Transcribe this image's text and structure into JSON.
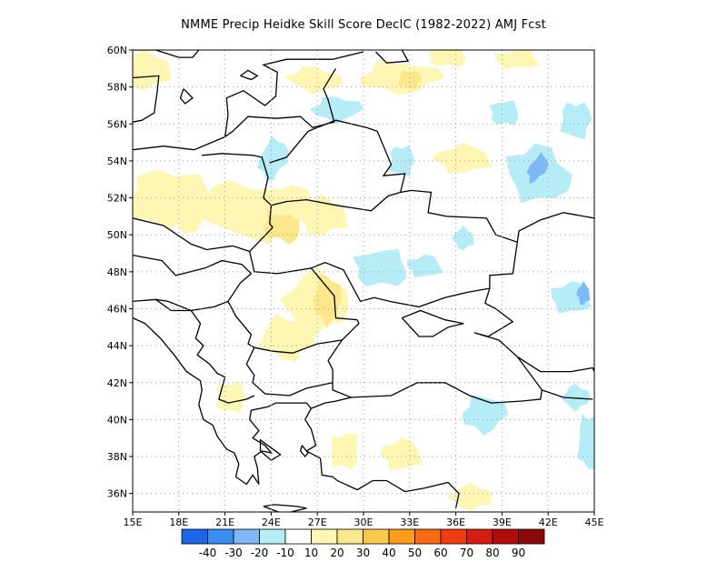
{
  "title": "NMME Precip Heidke Skill Score DecIC (1982-2022) AMJ Fcst",
  "map": {
    "lon_range": [
      15,
      45
    ],
    "lat_range": [
      35,
      60
    ],
    "lon_ticks": [
      "15E",
      "18E",
      "21E",
      "24E",
      "27E",
      "30E",
      "33E",
      "36E",
      "39E",
      "42E",
      "45E"
    ],
    "lat_ticks": [
      "60N",
      "58N",
      "56N",
      "54N",
      "52N",
      "50N",
      "48N",
      "46N",
      "44N",
      "42N",
      "40N",
      "38N",
      "36N"
    ],
    "grid": "dotted"
  },
  "colorbar": {
    "labels": [
      "-40",
      "-30",
      "-20",
      "-10",
      "10",
      "20",
      "30",
      "40",
      "50",
      "60",
      "70",
      "80",
      "90"
    ],
    "colors": [
      "#1c66e8",
      "#3a8ef2",
      "#7eb9f6",
      "#b5ecf5",
      "#ffffff",
      "#fff6b4",
      "#fde78d",
      "#fcc74a",
      "#fb9d1a",
      "#fa6a12",
      "#f03c10",
      "#d61e10",
      "#b30d0b",
      "#8b0a08"
    ]
  },
  "chart_data": {
    "type": "heatmap",
    "title": "NMME Precip Heidke Skill Score DecIC (1982-2022) AMJ Fcst",
    "xlabel": "",
    "ylabel": "",
    "xlim": [
      15,
      45
    ],
    "ylim": [
      35,
      60
    ],
    "color_levels": [
      -40,
      -30,
      -20,
      -10,
      10,
      20,
      30,
      40,
      50,
      60,
      70,
      80,
      90
    ],
    "regions": [
      {
        "lon": 15.8,
        "lat": 58.9,
        "value": 15
      },
      {
        "lon": 17.0,
        "lat": 52.0,
        "value": 15
      },
      {
        "lon": 18.5,
        "lat": 51.5,
        "value": 15
      },
      {
        "lon": 22.5,
        "lat": 51.3,
        "value": 15
      },
      {
        "lon": 24.8,
        "lat": 50.6,
        "value": 25
      },
      {
        "lon": 25.2,
        "lat": 51.8,
        "value": 15
      },
      {
        "lon": 27.3,
        "lat": 51.0,
        "value": 15
      },
      {
        "lon": 26.8,
        "lat": 58.4,
        "value": 15
      },
      {
        "lon": 32.3,
        "lat": 58.5,
        "value": 15
      },
      {
        "lon": 33.0,
        "lat": 58.4,
        "value": 25
      },
      {
        "lon": 35.5,
        "lat": 59.6,
        "value": 15
      },
      {
        "lon": 40.0,
        "lat": 59.5,
        "value": 15
      },
      {
        "lon": 36.5,
        "lat": 54.1,
        "value": 15
      },
      {
        "lon": 26.9,
        "lat": 46.3,
        "value": 15
      },
      {
        "lon": 27.6,
        "lat": 46.5,
        "value": 25
      },
      {
        "lon": 25.0,
        "lat": 44.4,
        "value": 15
      },
      {
        "lon": 21.4,
        "lat": 41.2,
        "value": 15
      },
      {
        "lon": 28.8,
        "lat": 38.3,
        "value": 15
      },
      {
        "lon": 32.5,
        "lat": 38.1,
        "value": 15
      },
      {
        "lon": 37.0,
        "lat": 35.8,
        "value": 15
      },
      {
        "lon": 28.2,
        "lat": 56.8,
        "value": -15
      },
      {
        "lon": 24.1,
        "lat": 54.1,
        "value": -15
      },
      {
        "lon": 32.5,
        "lat": 54.0,
        "value": -15
      },
      {
        "lon": 31.2,
        "lat": 48.2,
        "value": -15
      },
      {
        "lon": 34.0,
        "lat": 48.3,
        "value": -15
      },
      {
        "lon": 36.5,
        "lat": 49.8,
        "value": -15
      },
      {
        "lon": 41.3,
        "lat": 53.3,
        "value": -15
      },
      {
        "lon": 41.3,
        "lat": 53.6,
        "value": -25
      },
      {
        "lon": 43.8,
        "lat": 56.2,
        "value": -15
      },
      {
        "lon": 39.2,
        "lat": 56.6,
        "value": -15
      },
      {
        "lon": 43.5,
        "lat": 46.6,
        "value": -15
      },
      {
        "lon": 44.3,
        "lat": 46.8,
        "value": -25
      },
      {
        "lon": 43.8,
        "lat": 41.2,
        "value": -15
      },
      {
        "lon": 37.8,
        "lat": 40.3,
        "value": -15
      },
      {
        "lon": 44.6,
        "lat": 38.8,
        "value": -15
      }
    ]
  }
}
